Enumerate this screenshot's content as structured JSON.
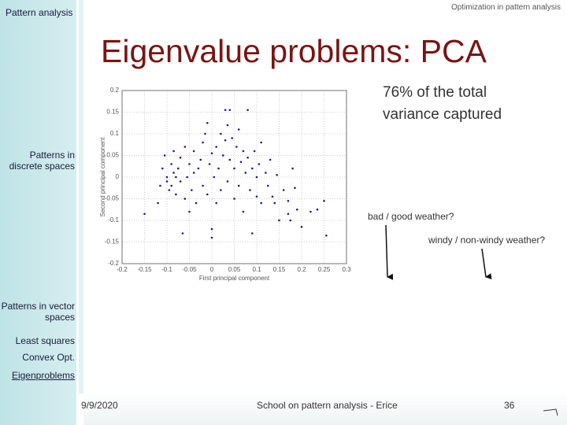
{
  "header": {
    "left": "Pattern analysis",
    "right": "Optimization in pattern analysis"
  },
  "title": "Eigenvalue problems: PCA",
  "sidebar": [
    "Patterns in discrete spaces",
    "Patterns in vector spaces",
    "Least squares",
    "Convex Opt.",
    "Eigenproblems"
  ],
  "footer": {
    "date": "9/9/2020",
    "event": "School on pattern analysis - Erice",
    "page": "36"
  },
  "annotations": [
    "76% of the total variance captured",
    "bad / good weather?",
    "windy / non-windy weather?"
  ],
  "chart_data": {
    "type": "scatter",
    "x_label": "First principal component",
    "y_label": "Second principal component",
    "color": "#1c1c8a",
    "grid": true,
    "xlim": [
      -0.2,
      0.3
    ],
    "ylim": [
      -0.2,
      0.2
    ],
    "xticks": [
      -0.2,
      -0.15,
      -0.1,
      -0.05,
      0,
      0.05,
      0.1,
      0.15,
      0.2,
      0.25,
      0.3
    ],
    "yticks": [
      -0.2,
      -0.15,
      -0.1,
      -0.05,
      0,
      0.05,
      0.1,
      0.15,
      0.2
    ],
    "x": [
      -0.15,
      -0.12,
      -0.115,
      -0.11,
      -0.105,
      -0.1,
      -0.1,
      -0.095,
      -0.09,
      -0.09,
      -0.085,
      -0.085,
      -0.08,
      -0.08,
      -0.075,
      -0.07,
      -0.07,
      -0.065,
      -0.06,
      -0.06,
      -0.055,
      -0.05,
      -0.05,
      -0.045,
      -0.04,
      -0.04,
      -0.035,
      -0.03,
      -0.025,
      -0.02,
      -0.02,
      -0.015,
      -0.01,
      -0.01,
      -0.005,
      0,
      0,
      0.005,
      0.01,
      0.01,
      0.015,
      0.02,
      0.02,
      0.025,
      0.03,
      0.03,
      0.035,
      0.035,
      0.04,
      0.04,
      0.045,
      0.05,
      0.05,
      0.055,
      0.06,
      0.06,
      0.065,
      0.07,
      0.07,
      0.075,
      0.08,
      0.08,
      0.085,
      0.09,
      0.09,
      0.095,
      0.1,
      0.1,
      0.105,
      0.11,
      0.11,
      0.12,
      0.125,
      0.13,
      0.135,
      0.14,
      0.145,
      0.15,
      0.16,
      0.17,
      0.175,
      0.18,
      0.185,
      0.19,
      0.2,
      0.22,
      0.235,
      0.25,
      0.255,
      0,
      0.17
    ],
    "y": [
      -0.085,
      -0.06,
      -0.02,
      0.02,
      0.05,
      -0.01,
      0,
      -0.03,
      0.03,
      -0.02,
      0.06,
      0.01,
      -0.04,
      0,
      0.02,
      -0.01,
      0.045,
      -0.13,
      0.07,
      -0.05,
      0,
      0.03,
      -0.08,
      -0.03,
      0.06,
      0.01,
      -0.06,
      0.02,
      0.04,
      -0.02,
      0.08,
      0.1,
      0.125,
      -0.04,
      0.03,
      0.055,
      -0.12,
      0,
      0.07,
      -0.06,
      0.02,
      0.1,
      -0.03,
      0.05,
      0.155,
      0.085,
      0.12,
      -0.01,
      0.155,
      0.04,
      0.09,
      0.02,
      -0.05,
      0.07,
      0.11,
      -0.02,
      0.035,
      0.06,
      -0.08,
      0.01,
      0.155,
      0.045,
      -0.03,
      0.02,
      -0.13,
      0.06,
      0,
      -0.045,
      0.03,
      0.08,
      -0.06,
      0.01,
      -0.02,
      0.04,
      -0.045,
      -0.06,
      0.005,
      -0.1,
      -0.03,
      -0.055,
      -0.1,
      0.02,
      -0.025,
      -0.075,
      -0.115,
      -0.08,
      -0.075,
      -0.055,
      -0.135,
      -0.14,
      -0.085
    ]
  }
}
